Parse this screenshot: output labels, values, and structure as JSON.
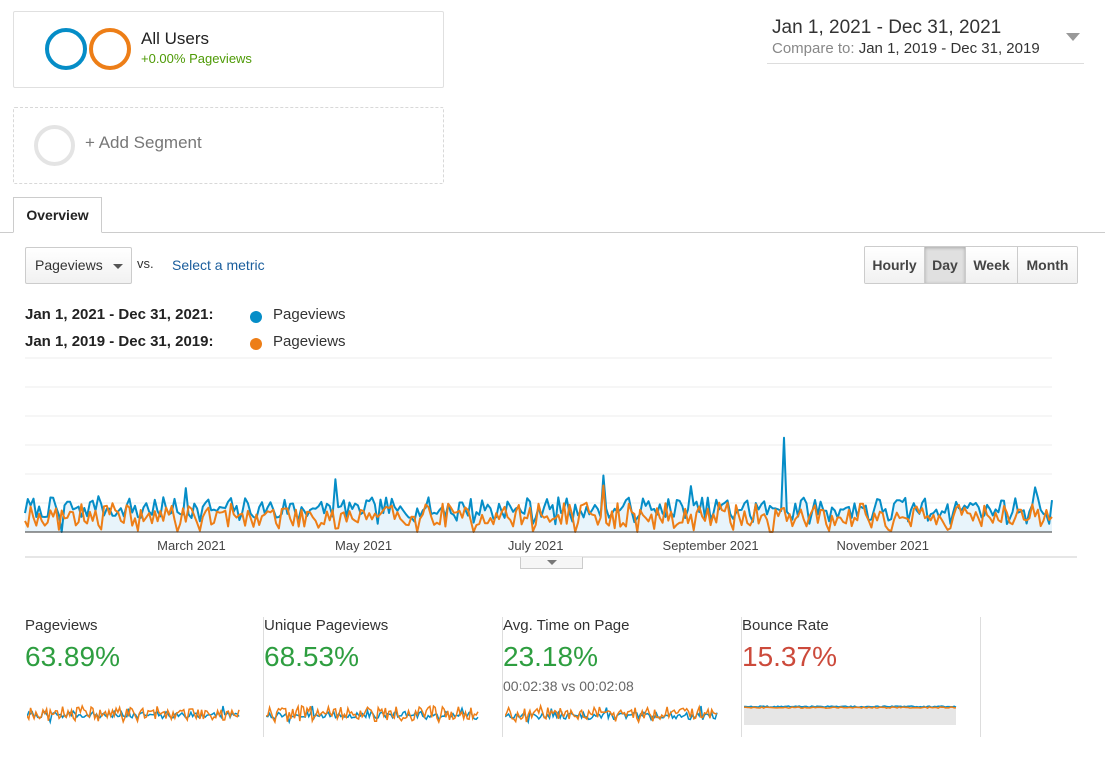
{
  "segments": {
    "primary": {
      "name": "All Users",
      "change": "+0.00% Pageviews"
    },
    "add_label": "+ Add Segment"
  },
  "date_range": {
    "main": "Jan 1, 2021 - Dec 31, 2021",
    "compare_prefix": "Compare to:",
    "compare_range": "Jan 1, 2019 - Dec 31, 2019"
  },
  "tabs": [
    {
      "label": "Overview",
      "active": true
    }
  ],
  "metric_select": {
    "value": "Pageviews"
  },
  "vs_label": "vs.",
  "select_metric": "Select a metric",
  "granularity": [
    {
      "label": "Hourly",
      "active": false
    },
    {
      "label": "Day",
      "active": true
    },
    {
      "label": "Week",
      "active": false
    },
    {
      "label": "Month",
      "active": false
    }
  ],
  "legend": [
    {
      "range": "Jan 1, 2021 - Dec 31, 2021:",
      "name": "Pageviews",
      "color": "#058dc7"
    },
    {
      "range": "Jan 1, 2019 - Dec 31, 2019:",
      "name": "Pageviews",
      "color": "#ed7e17"
    }
  ],
  "chart_data": {
    "type": "line",
    "x_tick_labels": [
      "March 2021",
      "May 2021",
      "July 2021",
      "September 2021",
      "November 2021"
    ],
    "x_tick_days": [
      59,
      120,
      181,
      243,
      304
    ],
    "days": 365,
    "grid": true,
    "ylim": [
      0,
      100
    ],
    "series": [
      {
        "name": "Jan 1, 2021 - Dec 31, 2021: Pageviews",
        "color": "#058dc7",
        "fill": "#e8f4fb",
        "baseline": 14,
        "volatility": 6,
        "spikes": [
          [
            13,
            -14
          ],
          [
            26,
            14
          ],
          [
            57,
            12
          ],
          [
            110,
            17
          ],
          [
            205,
            14
          ],
          [
            236,
            12
          ],
          [
            269,
            45
          ],
          [
            335,
            10
          ],
          [
            358,
            12
          ]
        ],
        "seed": 7
      },
      {
        "name": "Jan 1, 2019 - Dec 31, 2019: Pageviews",
        "color": "#ed7e17",
        "baseline": 10,
        "volatility": 7,
        "spikes": [
          [
            20,
            8
          ],
          [
            205,
            12
          ],
          [
            217,
            -8
          ]
        ],
        "seed": 19
      }
    ]
  },
  "scorecards": [
    {
      "label": "Pageviews",
      "value": "63.89%",
      "trend": "positive",
      "detail": ""
    },
    {
      "label": "Unique Pageviews",
      "value": "68.53%",
      "trend": "positive",
      "detail": ""
    },
    {
      "label": "Avg. Time on Page",
      "value": "23.18%",
      "trend": "positive",
      "detail": "00:02:38 vs 00:02:08"
    },
    {
      "label": "Bounce Rate",
      "value": "15.37%",
      "trend": "negative",
      "detail": ""
    }
  ]
}
